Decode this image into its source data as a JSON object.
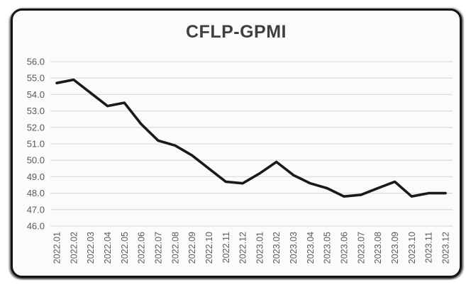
{
  "chart": {
    "title": "CFLP-GPMI"
  },
  "chart_data": {
    "type": "line",
    "title": "CFLP-GPMI",
    "categories": [
      "2022.01",
      "2022.02",
      "2022.03",
      "2022.04",
      "2022.05",
      "2022.06",
      "2022.07",
      "2022.08",
      "2022.09",
      "2022.10",
      "2022.11",
      "2022.12",
      "2023.01",
      "2023.02",
      "2023.03",
      "2023.04",
      "2023.05",
      "2023.06",
      "2023.07",
      "2023.08",
      "2023.09",
      "2023.10",
      "2023.11",
      "2023.12"
    ],
    "series": [
      {
        "name": "CFLP-GPMI",
        "values": [
          54.7,
          54.9,
          54.1,
          53.3,
          53.5,
          52.2,
          51.2,
          50.9,
          50.3,
          49.5,
          48.7,
          48.6,
          49.2,
          49.9,
          49.1,
          48.6,
          48.3,
          47.8,
          47.9,
          48.3,
          48.7,
          47.8,
          48.0,
          48.0
        ]
      }
    ],
    "xlabel": "",
    "ylabel": "",
    "ylim": [
      46.0,
      56.0
    ],
    "ytick_step": 1.0,
    "ytick_labels": [
      "56.0",
      "55.0",
      "54.0",
      "53.0",
      "52.0",
      "51.0",
      "50.0",
      "49.0",
      "48.0",
      "47.0",
      "46.0"
    ],
    "grid": true,
    "legend_position": "none",
    "colors": {
      "line": "#1a1a1a",
      "grid": "#dcdcdc",
      "tick_label": "#595959",
      "title": "#3f3f3f",
      "card_background": "#fbfbfb",
      "page_background": "#ffffff",
      "frame_border": "#141414"
    }
  }
}
